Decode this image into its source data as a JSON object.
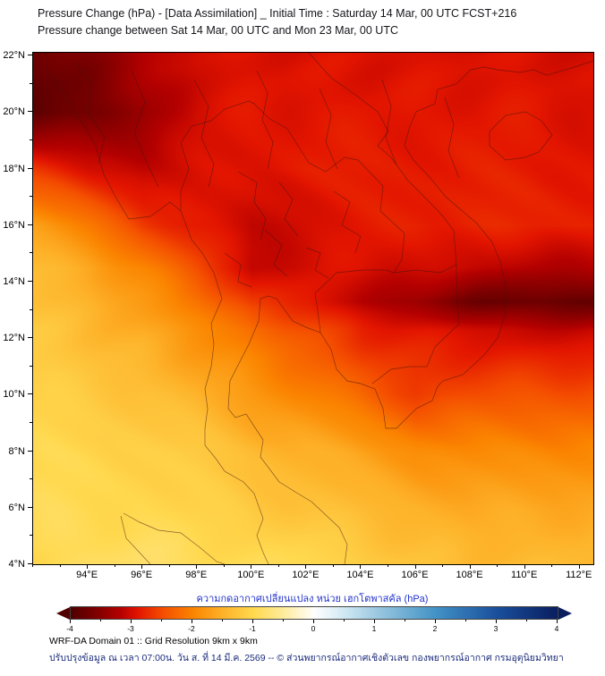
{
  "header": {
    "title_line1": "Pressure Change (hPa) - [Data Assimilation] _ Initial Time : Saturday 14 Mar, 00 UTC FCST+216",
    "title_line2": "Pressure change between Sat 14 Mar, 00 UTC and Mon 23 Mar, 00 UTC",
    "title_color": "#15151a"
  },
  "axes": {
    "lat": {
      "min": 4,
      "max": 22.1,
      "tick_values": [
        22,
        20,
        18,
        16,
        14,
        12,
        10,
        8,
        6,
        4
      ],
      "tick_labels": [
        "22°N",
        "20°N",
        "18°N",
        "16°N",
        "14°N",
        "12°N",
        "10°N",
        "8°N",
        "6°N",
        "4°N"
      ],
      "minor_step": 1
    },
    "lon": {
      "min": 92,
      "max": 112.5,
      "tick_values": [
        94,
        96,
        98,
        100,
        102,
        104,
        106,
        108,
        110,
        112
      ],
      "tick_labels": [
        "94°E",
        "96°E",
        "98°E",
        "100°E",
        "102°E",
        "104°E",
        "106°E",
        "108°E",
        "110°E",
        "112°E"
      ],
      "minor_step": 1
    }
  },
  "chart_data": {
    "type": "heatmap",
    "title": "Pressure Change (hPa) - [Data Assimilation]",
    "field": "pressure_change",
    "units": "hPa",
    "xlabel": "longitude (°E)",
    "ylabel": "latitude (°N)",
    "lon_range": [
      92,
      112.5
    ],
    "lat_range": [
      4,
      22.1
    ],
    "lons": [
      92,
      94,
      96,
      98,
      100,
      102,
      104,
      106,
      108,
      110,
      112.5
    ],
    "lats": [
      22.1,
      20,
      18,
      16,
      14.5,
      13.3,
      12.3,
      10,
      8,
      6,
      4
    ],
    "values": [
      [
        -3.8,
        -3.6,
        -3.2,
        -3.0,
        -2.95,
        -2.95,
        -2.95,
        -2.95,
        -2.95,
        -2.95,
        -3.0
      ],
      [
        -3.9,
        -3.7,
        -3.4,
        -3.0,
        -2.9,
        -2.9,
        -2.9,
        -2.9,
        -2.9,
        -2.9,
        -2.95
      ],
      [
        -2.7,
        -3.0,
        -3.1,
        -3.0,
        -2.9,
        -2.85,
        -2.85,
        -2.85,
        -2.85,
        -2.85,
        -2.9
      ],
      [
        -1.7,
        -2.1,
        -2.6,
        -2.9,
        -3.1,
        -3.0,
        -2.9,
        -2.8,
        -2.8,
        -2.8,
        -2.8
      ],
      [
        -1.4,
        -1.6,
        -2.0,
        -2.5,
        -3.1,
        -3.0,
        -2.95,
        -3.0,
        -3.1,
        -3.2,
        -3.2
      ],
      [
        -1.3,
        -1.5,
        -1.8,
        -2.1,
        -2.7,
        -2.8,
        -3.2,
        -3.4,
        -3.7,
        -3.8,
        -3.8
      ],
      [
        -1.2,
        -1.4,
        -1.6,
        -1.9,
        -2.2,
        -2.5,
        -2.8,
        -2.9,
        -3.0,
        -3.1,
        -3.1
      ],
      [
        -1.1,
        -1.2,
        -1.3,
        -1.5,
        -1.8,
        -2.0,
        -2.3,
        -2.6,
        -2.5,
        -2.45,
        -2.45
      ],
      [
        -1.0,
        -1.05,
        -1.1,
        -1.2,
        -1.4,
        -1.5,
        -1.7,
        -1.9,
        -1.95,
        -1.95,
        -1.95
      ],
      [
        -0.95,
        -1.0,
        -1.0,
        -1.1,
        -1.2,
        -1.3,
        -1.4,
        -1.5,
        -1.6,
        -1.6,
        -1.6
      ],
      [
        -1.0,
        -0.9,
        -0.85,
        -0.9,
        -1.0,
        -0.95,
        -1.15,
        -1.3,
        -1.4,
        -1.4,
        -1.4
      ]
    ],
    "colorscale": {
      "stops": [
        [
          -4.0,
          "#4f0000"
        ],
        [
          -3.6,
          "#7e0000"
        ],
        [
          -3.2,
          "#b30000"
        ],
        [
          -2.9,
          "#e31500"
        ],
        [
          -2.5,
          "#f44d00"
        ],
        [
          -2.0,
          "#fb8500"
        ],
        [
          -1.5,
          "#fdb32a"
        ],
        [
          -1.0,
          "#ffd94f"
        ],
        [
          -0.5,
          "#ffec9e"
        ],
        [
          0,
          "#ffffff"
        ],
        [
          0.5,
          "#cfe8f3"
        ],
        [
          1,
          "#9ecae1"
        ],
        [
          2,
          "#4292c6"
        ],
        [
          3,
          "#1a4f9c"
        ],
        [
          4,
          "#0a1e5e"
        ]
      ]
    },
    "legend_position": "bottom",
    "grid": "off"
  },
  "colorbar": {
    "label": "ความกดอากาศเปลี่ยนแปลง หน่วย เฮกโตพาสคัล (hPa)",
    "label_color": "#2233cc",
    "min": -4,
    "max": 4,
    "major_ticks": [
      "-4",
      "-3",
      "-2",
      "-1",
      "0",
      "1",
      "2",
      "3",
      "4"
    ],
    "major_tick_values": [
      -4,
      -3,
      -2,
      -1,
      0,
      1,
      2,
      3,
      4
    ],
    "minor_step": 0.5
  },
  "footer": {
    "line1": "WRF-DA Domain 01 :: Grid Resolution 9km x 9km",
    "line2": "ปรับปรุงข้อมูล ณ เวลา 07:00น. วัน ส. ที่ 14 มี.ค. 2569 -- © ส่วนพยากรณ์อากาศเชิงตัวเลข กองพยากรณ์อากาศ กรมอุตุนิยมวิทยา",
    "line2_color": "#1a2a7a"
  }
}
